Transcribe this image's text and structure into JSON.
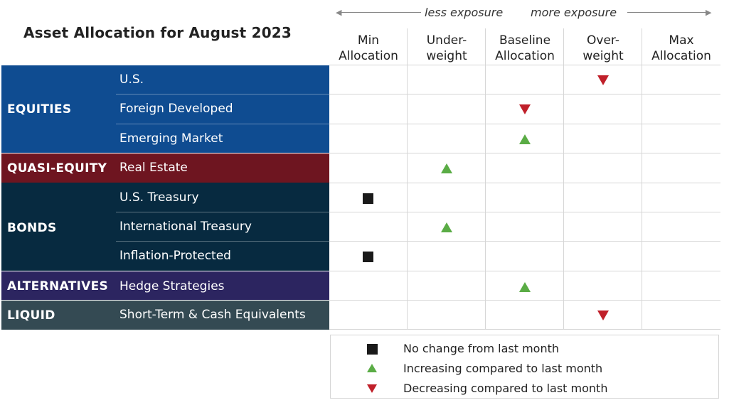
{
  "title": "Asset Allocation for August 2023",
  "exposure": {
    "less": "less exposure",
    "more": "more exposure"
  },
  "columns": [
    {
      "line1": "Min",
      "line2": "Allocation"
    },
    {
      "line1": "Under-",
      "line2": "weight"
    },
    {
      "line1": "Baseline",
      "line2": "Allocation"
    },
    {
      "line1": "Over-",
      "line2": "weight"
    },
    {
      "line1": "Max",
      "line2": "Allocation"
    }
  ],
  "groups": [
    {
      "name": "EQUITIES",
      "color": "#0f4c91"
    },
    {
      "name": "QUASI-EQUITY",
      "color": "#6e1520"
    },
    {
      "name": "BONDS",
      "color": "#072a40"
    },
    {
      "name": "ALTERNATIVES",
      "color": "#2c2560"
    },
    {
      "name": "LIQUID",
      "color": "#344a53"
    }
  ],
  "rows": [
    {
      "label": "U.S.",
      "group": "EQUITIES",
      "allocation": "Over-weight",
      "change": "decreasing"
    },
    {
      "label": "Foreign Developed",
      "group": "EQUITIES",
      "allocation": "Baseline Allocation",
      "change": "decreasing"
    },
    {
      "label": "Emerging Market",
      "group": "EQUITIES",
      "allocation": "Baseline Allocation",
      "change": "increasing"
    },
    {
      "label": "Real Estate",
      "group": "QUASI-EQUITY",
      "allocation": "Under-weight",
      "change": "increasing"
    },
    {
      "label": "U.S. Treasury",
      "group": "BONDS",
      "allocation": "Min Allocation",
      "change": "no change"
    },
    {
      "label": "International Treasury",
      "group": "BONDS",
      "allocation": "Under-weight",
      "change": "increasing"
    },
    {
      "label": "Inflation-Protected",
      "group": "BONDS",
      "allocation": "Min Allocation",
      "change": "no change"
    },
    {
      "label": "Hedge Strategies",
      "group": "ALTERNATIVES",
      "allocation": "Baseline Allocation",
      "change": "increasing"
    },
    {
      "label": "Short-Term & Cash Equivalents",
      "group": "LIQUID",
      "allocation": "Over-weight",
      "change": "decreasing"
    }
  ],
  "legend": {
    "no_change": "No change from last month",
    "increasing": "Increasing compared to last month",
    "decreasing": "Decreasing compared to last month"
  },
  "colors": {
    "increasing": "#5aac45",
    "decreasing": "#c0202a",
    "no_change": "#1a1a1a"
  }
}
